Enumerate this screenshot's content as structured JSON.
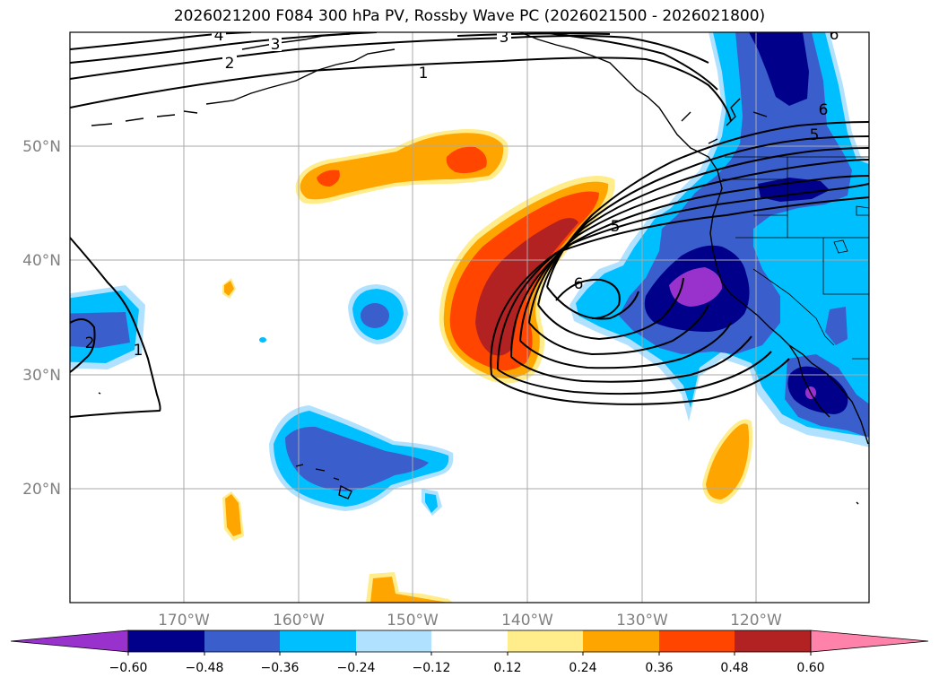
{
  "title": "2026021200 F084 300 hPa PV, Rossby Wave PC (2026021500 - 2026021800)",
  "map": {
    "lat_labels": [
      "50°N",
      "40°N",
      "30°N",
      "20°N"
    ],
    "lon_labels": [
      "170°W",
      "160°W",
      "150°W",
      "140°W",
      "130°W",
      "120°W"
    ],
    "contour_labels": [
      "4",
      "3",
      "2",
      "1",
      "3",
      "5",
      "6",
      "6",
      "5",
      "1",
      "2",
      "6"
    ]
  },
  "colorbar": {
    "ticks": [
      "−0.60",
      "−0.48",
      "−0.36",
      "−0.24",
      "−0.12",
      "0.12",
      "0.24",
      "0.36",
      "0.48",
      "0.60"
    ],
    "colors": [
      "#9932cc",
      "#00008b",
      "#3a5fcd",
      "#00bfff",
      "#b0e2ff",
      "#ffffff",
      "#ffec8b",
      "#ffa500",
      "#ff4500",
      "#b22222",
      "#ff82ab"
    ]
  }
}
